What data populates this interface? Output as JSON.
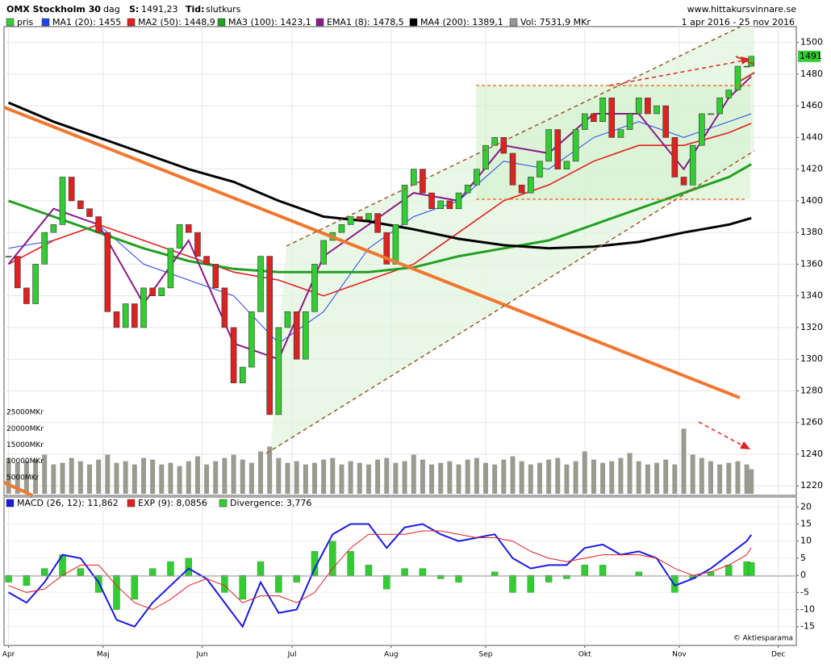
{
  "chart_data": [
    {
      "type": "candlestick",
      "title": "OMX Stockholm 30",
      "period": "dag",
      "close_label": "S:",
      "close_text": "1491,23",
      "mode_label": "Tid:",
      "mode": "slutkurs",
      "source": "www.hittakursvinnare.se",
      "date_range": "1 apr 2016 - 25 nov 2016",
      "xlim": [
        -1,
        175
      ],
      "xticks": [
        {
          "value": 0,
          "label": "Apr"
        },
        {
          "value": 21,
          "label": "Maj"
        },
        {
          "value": 43,
          "label": "Jun"
        },
        {
          "value": 63,
          "label": "Jul"
        },
        {
          "value": 85,
          "label": "Aug"
        },
        {
          "value": 106,
          "label": "Sep"
        },
        {
          "value": 128,
          "label": "Okt"
        },
        {
          "value": 149,
          "label": "Nov"
        },
        {
          "value": 171,
          "label": "Dec"
        }
      ],
      "ylim": [
        1214,
        1510
      ],
      "yticks": [
        1220,
        1240,
        1260,
        1280,
        1300,
        1320,
        1340,
        1360,
        1380,
        1400,
        1420,
        1440,
        1460,
        1480,
        1500
      ],
      "grid": true,
      "price": {
        "name": "pris",
        "color": "#33cc33",
        "down_color": "#dd2222",
        "last_label": "1491",
        "x": [
          0,
          2,
          4,
          6,
          8,
          10,
          12,
          14,
          16,
          18,
          20,
          22,
          24,
          26,
          28,
          30,
          32,
          34,
          36,
          38,
          40,
          42,
          44,
          46,
          48,
          50,
          52,
          54,
          56,
          58,
          60,
          62,
          64,
          66,
          68,
          70,
          72,
          74,
          76,
          78,
          80,
          82,
          84,
          86,
          88,
          90,
          92,
          94,
          96,
          98,
          100,
          102,
          104,
          106,
          108,
          110,
          112,
          114,
          116,
          118,
          120,
          122,
          124,
          126,
          128,
          130,
          132,
          134,
          136,
          138,
          140,
          142,
          144,
          146,
          148,
          150,
          152,
          154,
          156,
          158,
          160,
          162,
          164,
          165
        ],
        "values": [
          1365,
          1345,
          1335,
          1360,
          1380,
          1385,
          1415,
          1400,
          1395,
          1390,
          1380,
          1330,
          1320,
          1335,
          1320,
          1345,
          1340,
          1345,
          1370,
          1385,
          1380,
          1365,
          1360,
          1345,
          1320,
          1285,
          1295,
          1330,
          1365,
          1265,
          1320,
          1330,
          1300,
          1330,
          1360,
          1375,
          1380,
          1385,
          1390,
          1388,
          1392,
          1380,
          1360,
          1385,
          1410,
          1420,
          1405,
          1395,
          1400,
          1395,
          1405,
          1410,
          1420,
          1435,
          1440,
          1430,
          1410,
          1405,
          1415,
          1425,
          1445,
          1420,
          1425,
          1445,
          1455,
          1450,
          1465,
          1440,
          1445,
          1455,
          1465,
          1455,
          1460,
          1440,
          1415,
          1410,
          1435,
          1455,
          1455,
          1465,
          1470,
          1485,
          1485,
          1491.23
        ]
      },
      "series": [
        {
          "name": "MA1 (20): 1455",
          "color": "#2244ee",
          "width": 1,
          "x": [
            0,
            10,
            20,
            30,
            40,
            50,
            60,
            70,
            80,
            90,
            100,
            110,
            120,
            130,
            140,
            150,
            160,
            165
          ],
          "values": [
            1370,
            1375,
            1385,
            1360,
            1350,
            1340,
            1310,
            1330,
            1370,
            1390,
            1400,
            1425,
            1420,
            1440,
            1450,
            1440,
            1450,
            1455
          ]
        },
        {
          "name": "MA2 (50): 1448,9",
          "color": "#e02020",
          "width": 1.6,
          "x": [
            0,
            10,
            20,
            30,
            40,
            50,
            60,
            70,
            80,
            90,
            100,
            110,
            120,
            130,
            140,
            150,
            160,
            165
          ],
          "values": [
            1360,
            1375,
            1385,
            1375,
            1365,
            1355,
            1350,
            1340,
            1350,
            1360,
            1380,
            1400,
            1410,
            1425,
            1435,
            1435,
            1443,
            1448.9
          ]
        },
        {
          "name": "MA3 (100): 1423,1",
          "color": "#22a022",
          "width": 3,
          "x": [
            0,
            10,
            20,
            30,
            40,
            50,
            60,
            70,
            80,
            90,
            100,
            110,
            120,
            130,
            140,
            150,
            160,
            165
          ],
          "values": [
            1400,
            1390,
            1380,
            1370,
            1362,
            1357,
            1355,
            1355,
            1355,
            1358,
            1365,
            1370,
            1375,
            1385,
            1395,
            1405,
            1415,
            1423.1
          ]
        },
        {
          "name": "EMA1 (8): 1478,5",
          "color": "#8b1a8b",
          "width": 2,
          "x": [
            0,
            10,
            20,
            30,
            40,
            50,
            60,
            70,
            80,
            90,
            100,
            110,
            120,
            130,
            140,
            150,
            160,
            165
          ],
          "values": [
            1360,
            1395,
            1385,
            1335,
            1375,
            1310,
            1300,
            1365,
            1385,
            1405,
            1400,
            1435,
            1430,
            1455,
            1455,
            1420,
            1465,
            1478.5
          ]
        },
        {
          "name": "MA4 (200): 1389,1",
          "color": "#000000",
          "width": 3,
          "x": [
            0,
            10,
            20,
            30,
            40,
            50,
            60,
            70,
            80,
            90,
            100,
            110,
            120,
            130,
            140,
            150,
            160,
            165
          ],
          "values": [
            1462,
            1450,
            1440,
            1430,
            1420,
            1412,
            1400,
            1390,
            1387,
            1382,
            1376,
            1372,
            1370,
            1371,
            1374,
            1380,
            1385,
            1389.1
          ]
        }
      ],
      "volume": {
        "name": "Vol: 7531,9 MKr",
        "color": "#9a9a90",
        "ylim": [
          0,
          28000
        ],
        "yticks": [
          {
            "value": 5000,
            "label": "5000MKr"
          },
          {
            "value": 10000,
            "label": "10000MKr"
          },
          {
            "value": 15000,
            "label": "15000MKr"
          },
          {
            "value": 20000,
            "label": "20000MKr"
          },
          {
            "value": 25000,
            "label": "25000MKr"
          }
        ],
        "values": [
          11000,
          9500,
          10000,
          10500,
          12000,
          9000,
          9500,
          11000,
          10000,
          9000,
          10500,
          12000,
          9500,
          10000,
          9000,
          11000,
          10500,
          9000,
          9500,
          8500,
          10000,
          11500,
          9000,
          10000,
          11000,
          12000,
          10500,
          9500,
          13000,
          14500,
          11000,
          9500,
          10000,
          9000,
          9500,
          10500,
          11000,
          9000,
          10000,
          9500,
          9000,
          10500,
          11000,
          9500,
          10000,
          12000,
          10500,
          9000,
          9500,
          10000,
          9000,
          10500,
          11000,
          9500,
          9000,
          10500,
          11500,
          10000,
          9000,
          9500,
          10500,
          11000,
          9000,
          10000,
          13000,
          10500,
          9500,
          10000,
          11000,
          12500,
          10000,
          9000,
          9500,
          10500,
          9000,
          20000,
          12000,
          11000,
          10000,
          9000,
          9500,
          10000,
          9000,
          7531.9
        ]
      }
    },
    {
      "type": "macd",
      "credit": "© Aktiesparama",
      "ylim": [
        -20.5,
        22.9
      ],
      "yticks": [
        -15,
        -10,
        -5,
        0,
        5,
        10,
        15,
        20
      ],
      "x": [
        0,
        4,
        8,
        12,
        16,
        20,
        24,
        28,
        32,
        36,
        40,
        44,
        48,
        52,
        56,
        60,
        64,
        68,
        72,
        76,
        80,
        84,
        88,
        92,
        96,
        100,
        104,
        108,
        112,
        116,
        120,
        124,
        128,
        132,
        136,
        140,
        144,
        148,
        152,
        156,
        160,
        164,
        165
      ],
      "series": [
        {
          "name": "MACD (26, 12): 11,862",
          "color": "#1a1ae0",
          "kind": "line",
          "width": 2,
          "values": [
            -5,
            -8,
            -2,
            6,
            5,
            -2,
            -13,
            -15,
            -8,
            -3,
            2,
            -1,
            -8,
            -15,
            -2,
            -11,
            -10,
            2,
            12,
            15,
            15,
            8,
            14,
            15,
            12,
            10,
            11,
            12,
            5,
            2,
            3,
            3,
            8,
            9,
            6,
            7,
            5,
            -3,
            -1,
            2,
            6,
            10,
            11.862
          ]
        },
        {
          "name": "EXP (9): 8,0856",
          "color": "#e02020",
          "kind": "line",
          "width": 1,
          "values": [
            -3,
            -5,
            -4,
            0,
            3,
            3,
            -3,
            -8,
            -10,
            -7,
            -3,
            -1,
            -3,
            -8,
            -6,
            -6,
            -8,
            -5,
            2,
            8,
            12,
            12,
            12,
            13,
            13,
            12,
            11,
            11,
            10,
            7,
            5,
            4,
            5,
            6,
            6,
            6,
            5,
            2,
            0,
            1,
            3,
            6,
            8.0856
          ]
        },
        {
          "name": "Divergence: 3,776",
          "color": "#33cc33",
          "kind": "bar",
          "values": [
            -2,
            -3,
            2,
            6,
            2,
            -5,
            -10,
            -7,
            2,
            4,
            5,
            0,
            -5,
            -7,
            4,
            -5,
            -2,
            7,
            10,
            7,
            3,
            -4,
            2,
            2,
            -1,
            -2,
            0,
            1,
            -5,
            -5,
            -2,
            -1,
            3,
            3,
            0,
            1,
            0,
            -5,
            -1,
            1,
            3,
            4,
            3.776
          ]
        }
      ]
    }
  ]
}
